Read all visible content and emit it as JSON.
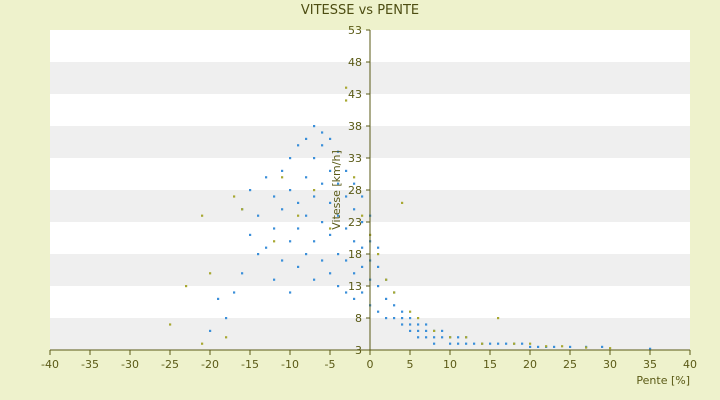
{
  "chart_data": {
    "type": "scatter",
    "title": "VITESSE vs PENTE",
    "xlabel": "Pente [%]",
    "ylabel": "Vitesse [km/h]",
    "xlim": [
      -40,
      40
    ],
    "ylim": [
      3,
      53
    ],
    "x_ticks": [
      -40,
      -35,
      -30,
      -25,
      -20,
      -15,
      -10,
      -5,
      0,
      5,
      10,
      15,
      20,
      25,
      30,
      35,
      40
    ],
    "y_ticks": [
      3,
      8,
      13,
      18,
      23,
      28,
      33,
      38,
      43,
      48,
      53
    ],
    "grid": "horizontal alternating bands",
    "colors": {
      "background": "#eef2cc",
      "plot_band_light": "#ffffff",
      "plot_band_dark": "#efefef",
      "axis": "#5a5a16",
      "series_main": "#3b8fd9",
      "series_alt": "#a8a832"
    },
    "series": [
      {
        "color": "#3b8fd9",
        "points": [
          [
            -20,
            6
          ],
          [
            -19,
            11
          ],
          [
            -18,
            8
          ],
          [
            -17,
            12
          ],
          [
            -16,
            15
          ],
          [
            -16,
            25
          ],
          [
            -15,
            21
          ],
          [
            -15,
            28
          ],
          [
            -14,
            18
          ],
          [
            -14,
            24
          ],
          [
            -13,
            19
          ],
          [
            -13,
            30
          ],
          [
            -12,
            14
          ],
          [
            -12,
            22
          ],
          [
            -12,
            27
          ],
          [
            -11,
            17
          ],
          [
            -11,
            25
          ],
          [
            -11,
            31
          ],
          [
            -10,
            12
          ],
          [
            -10,
            20
          ],
          [
            -10,
            28
          ],
          [
            -10,
            33
          ],
          [
            -9,
            16
          ],
          [
            -9,
            22
          ],
          [
            -9,
            26
          ],
          [
            -9,
            35
          ],
          [
            -8,
            18
          ],
          [
            -8,
            24
          ],
          [
            -8,
            30
          ],
          [
            -8,
            36
          ],
          [
            -7,
            14
          ],
          [
            -7,
            20
          ],
          [
            -7,
            27
          ],
          [
            -7,
            33
          ],
          [
            -7,
            38
          ],
          [
            -6,
            17
          ],
          [
            -6,
            23
          ],
          [
            -6,
            29
          ],
          [
            -6,
            35
          ],
          [
            -6,
            37
          ],
          [
            -5,
            15
          ],
          [
            -5,
            21
          ],
          [
            -5,
            26
          ],
          [
            -5,
            31
          ],
          [
            -5,
            36
          ],
          [
            -4,
            13
          ],
          [
            -4,
            18
          ],
          [
            -4,
            24
          ],
          [
            -4,
            29
          ],
          [
            -4,
            34
          ],
          [
            -3,
            12
          ],
          [
            -3,
            17
          ],
          [
            -3,
            22
          ],
          [
            -3,
            27
          ],
          [
            -3,
            31
          ],
          [
            -2,
            11
          ],
          [
            -2,
            15
          ],
          [
            -2,
            20
          ],
          [
            -2,
            25
          ],
          [
            -2,
            29
          ],
          [
            -1,
            12
          ],
          [
            -1,
            16
          ],
          [
            -1,
            19
          ],
          [
            -1,
            23
          ],
          [
            -1,
            27
          ],
          [
            0,
            10
          ],
          [
            0,
            14
          ],
          [
            0,
            17
          ],
          [
            0,
            20
          ],
          [
            0,
            24
          ],
          [
            1,
            9
          ],
          [
            1,
            13
          ],
          [
            1,
            16
          ],
          [
            1,
            19
          ],
          [
            2,
            8
          ],
          [
            2,
            11
          ],
          [
            2,
            14
          ],
          [
            3,
            8
          ],
          [
            3,
            10
          ],
          [
            3,
            12
          ],
          [
            4,
            7
          ],
          [
            4,
            8
          ],
          [
            4,
            9
          ],
          [
            5,
            7
          ],
          [
            5,
            6
          ],
          [
            5,
            8
          ],
          [
            6,
            6
          ],
          [
            6,
            7
          ],
          [
            6,
            5
          ],
          [
            7,
            6
          ],
          [
            7,
            5
          ],
          [
            7,
            7
          ],
          [
            8,
            5
          ],
          [
            8,
            6
          ],
          [
            8,
            4
          ],
          [
            9,
            5
          ],
          [
            9,
            6
          ],
          [
            10,
            5
          ],
          [
            10,
            4
          ],
          [
            11,
            5
          ],
          [
            11,
            4
          ],
          [
            12,
            4
          ],
          [
            12,
            5
          ],
          [
            13,
            4
          ],
          [
            14,
            4
          ],
          [
            15,
            4
          ],
          [
            16,
            4
          ],
          [
            17,
            4
          ],
          [
            18,
            4
          ],
          [
            19,
            4
          ],
          [
            20,
            3.5
          ],
          [
            21,
            3.5
          ],
          [
            22,
            3.5
          ],
          [
            23,
            3.5
          ],
          [
            25,
            3.5
          ],
          [
            27,
            3.5
          ],
          [
            29,
            3.5
          ],
          [
            35,
            3.2
          ]
        ]
      },
      {
        "color": "#a8a832",
        "points": [
          [
            -25,
            7
          ],
          [
            -23,
            13
          ],
          [
            -21,
            4
          ],
          [
            -21,
            24
          ],
          [
            -20,
            15
          ],
          [
            -18,
            5
          ],
          [
            -17,
            27
          ],
          [
            -16,
            25
          ],
          [
            -12,
            20
          ],
          [
            -11,
            30
          ],
          [
            -9,
            24
          ],
          [
            -7,
            28
          ],
          [
            -5,
            22
          ],
          [
            -3,
            44
          ],
          [
            -3,
            42
          ],
          [
            -2,
            30
          ],
          [
            -1,
            24
          ],
          [
            0,
            21
          ],
          [
            1,
            18
          ],
          [
            2,
            14
          ],
          [
            3,
            12
          ],
          [
            4,
            26
          ],
          [
            5,
            9
          ],
          [
            6,
            8
          ],
          [
            8,
            6
          ],
          [
            10,
            5
          ],
          [
            12,
            5
          ],
          [
            14,
            4
          ],
          [
            16,
            8
          ],
          [
            18,
            4
          ],
          [
            20,
            4
          ],
          [
            22,
            3.6
          ],
          [
            24,
            3.6
          ],
          [
            27,
            3.4
          ],
          [
            30,
            3.3
          ]
        ]
      }
    ]
  }
}
